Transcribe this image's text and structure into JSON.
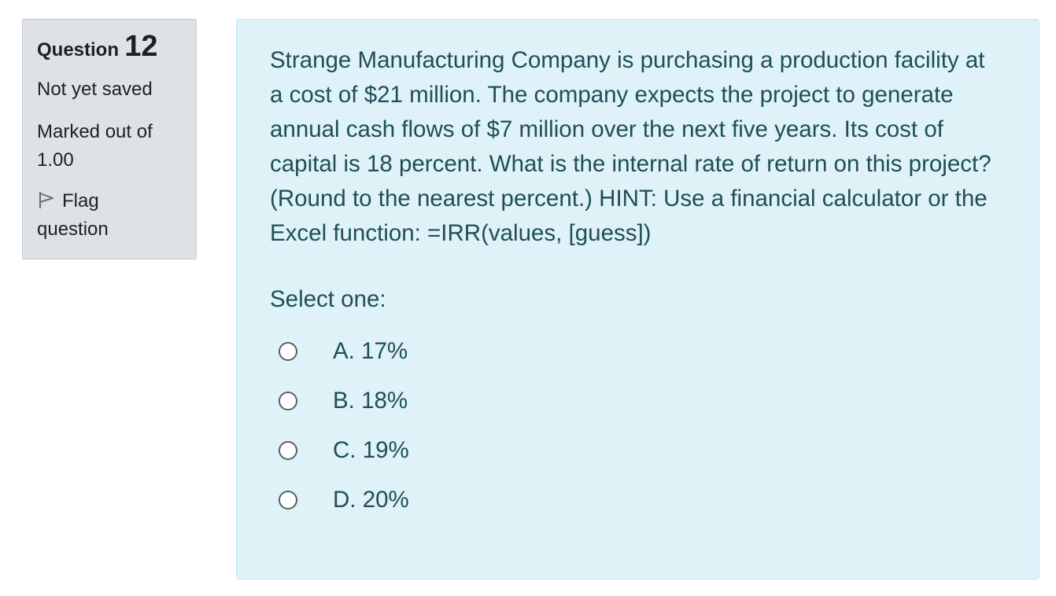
{
  "question_info": {
    "question_word": "Question",
    "question_number": "12",
    "state": "Not yet saved",
    "grade_line1": "Marked out of",
    "grade_line2": "1.00",
    "flag_word": "Flag",
    "flag_word2": "question"
  },
  "question": {
    "text": "Strange Manufacturing Company is purchasing a production facility at a cost of $21 million. The company expects the project to generate annual cash flows of $7 million over the next five years. Its cost of capital is 18 percent. What is the internal rate of return on this project? (Round to the nearest percent.) HINT: Use a financial calculator or the Excel function: =IRR(values, [guess])",
    "prompt": "Select one:",
    "answers": [
      {
        "label": "A. 17%"
      },
      {
        "label": "B. 18%"
      },
      {
        "label": "C. 19%"
      },
      {
        "label": "D. 20%"
      }
    ]
  },
  "colors": {
    "info_background": "#dee2e6",
    "content_background": "#def2f8",
    "content_text": "#1f4e57"
  },
  "icons": {
    "flag": "flag-icon"
  }
}
